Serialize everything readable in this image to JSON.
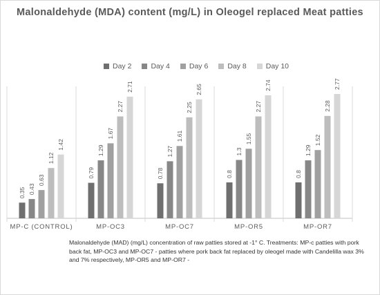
{
  "chart_data": {
    "type": "bar",
    "title": "Malonaldehyde (MDA) content (mg/L) in Oleogel replaced Meat patties",
    "categories": [
      "MP-C (CONTROL)",
      "MP-OC3",
      "MP-OC7",
      "MP-OR5",
      "MP-OR7"
    ],
    "series": [
      {
        "name": "Day 2",
        "color": "#6f6f6f",
        "values": [
          0.35,
          0.79,
          0.78,
          0.8,
          0.8
        ],
        "labels": [
          "0.35",
          "0.79",
          "0.78",
          "0.8",
          "0.8"
        ]
      },
      {
        "name": "Day 4",
        "color": "#878787",
        "values": [
          0.43,
          1.29,
          1.27,
          1.3,
          1.29
        ],
        "labels": [
          "0.43",
          "1.29",
          "1.27",
          "1.3",
          "1.29"
        ]
      },
      {
        "name": "Day 6",
        "color": "#a0a0a0",
        "values": [
          0.63,
          1.67,
          1.61,
          1.55,
          1.52
        ],
        "labels": [
          "0.63",
          "1.67",
          "1.61",
          "1.55",
          "1.52"
        ]
      },
      {
        "name": "Day 8",
        "color": "#bdbdbd",
        "values": [
          1.12,
          2.27,
          2.25,
          2.27,
          2.28
        ],
        "labels": [
          "1.12",
          "2.27",
          "2.25",
          "2.27",
          "2.28"
        ]
      },
      {
        "name": "Day 10",
        "color": "#d6d6d6",
        "values": [
          1.42,
          2.71,
          2.65,
          2.74,
          2.77
        ],
        "labels": [
          "1.42",
          "2.71",
          "2.65",
          "2.74",
          "2.77"
        ]
      }
    ],
    "ylim": [
      0,
      3.2
    ],
    "grid": false,
    "legend_position": "top"
  },
  "caption": "Malonaldehyde (MAD) (mg/L) concentration of raw patties stored at -1° C. Treatments: MP-c patties with pork back fat, MP-OC3 and MP-OC7 -  patties where pork back fat replaced by oleogel made with Candelilla wax 3% and 7% respectively, MP-OR5 and MP-OR7 -"
}
